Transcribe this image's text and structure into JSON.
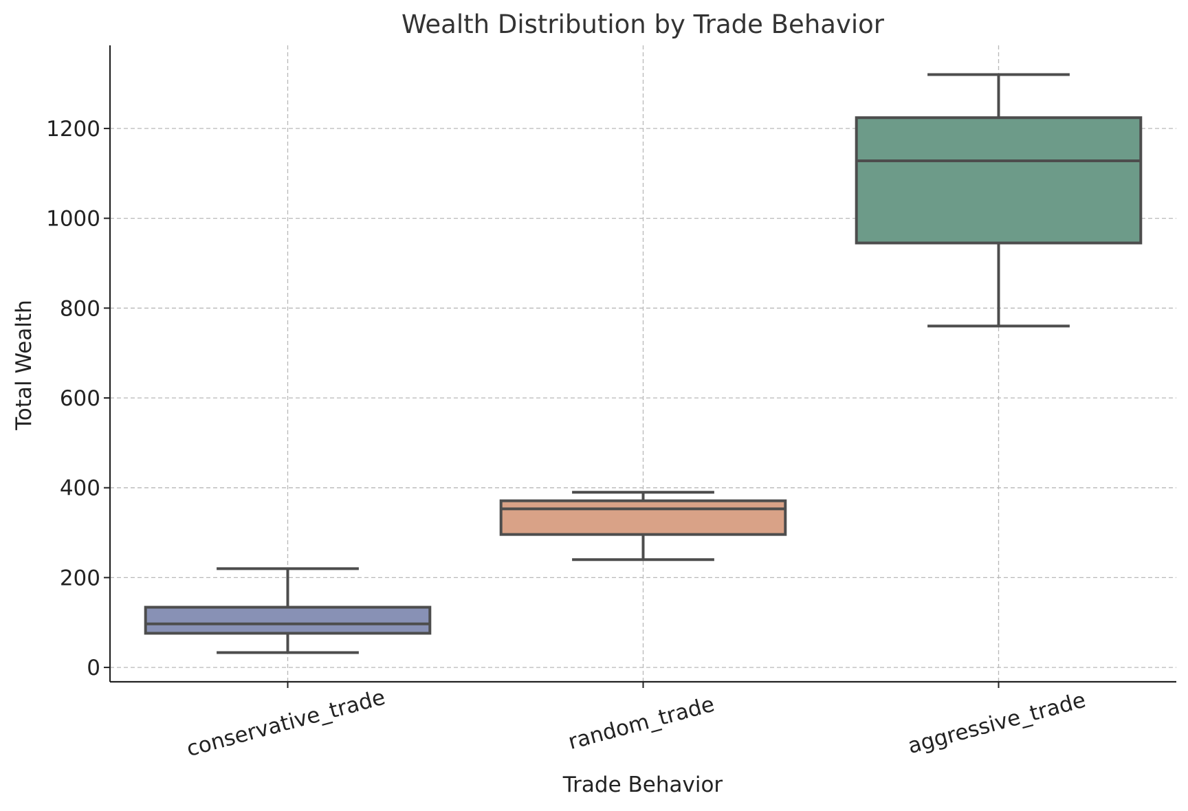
{
  "chart_data": {
    "type": "box",
    "title": "Wealth Distribution by Trade Behavior",
    "xlabel": "Trade Behavior",
    "ylabel": "Total Wealth",
    "ylim": [
      -32,
      1385
    ],
    "yticks": [
      0,
      200,
      400,
      600,
      800,
      1000,
      1200
    ],
    "ytick_labels": [
      "0",
      "200",
      "400",
      "600",
      "800",
      "1000",
      "1200"
    ],
    "xtick_rotation_deg": -15,
    "grid": true,
    "categories": [
      "conservative_trade",
      "random_trade",
      "aggressive_trade"
    ],
    "boxes": [
      {
        "category": "conservative_trade",
        "whisker_low": 33,
        "q1": 76,
        "median": 97,
        "q3": 134,
        "whisker_high": 220,
        "color": "#8891b5"
      },
      {
        "category": "random_trade",
        "whisker_low": 240,
        "q1": 296,
        "median": 353,
        "q3": 371,
        "whisker_high": 390,
        "color": "#d9a287"
      },
      {
        "category": "aggressive_trade",
        "whisker_low": 760,
        "q1": 945,
        "median": 1128,
        "q3": 1224,
        "whisker_high": 1320,
        "color": "#6d9b89"
      }
    ]
  }
}
